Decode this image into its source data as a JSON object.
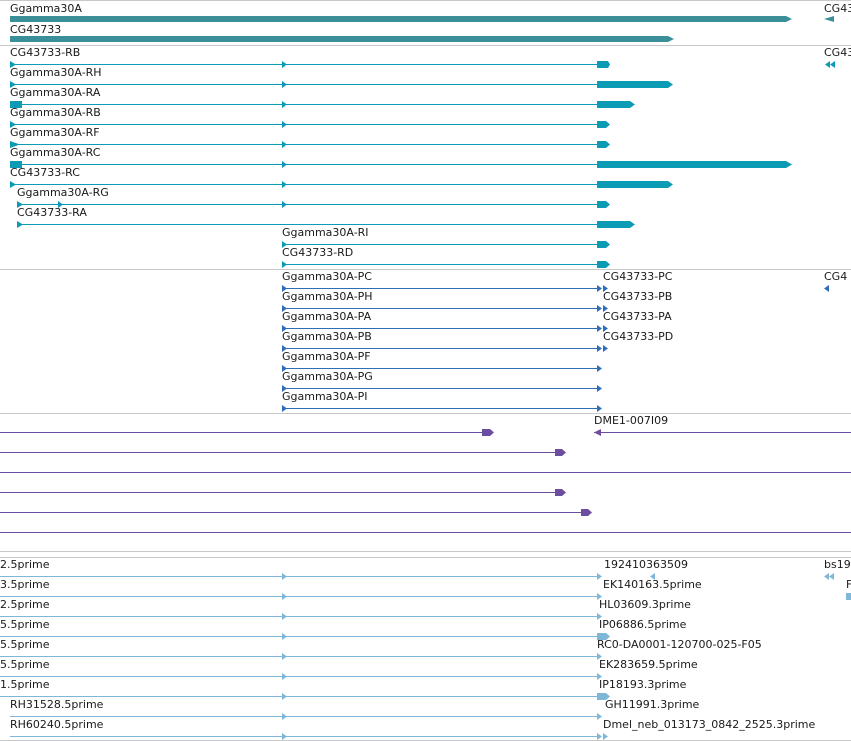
{
  "colors": {
    "gene": "#3a8f98",
    "transcript": "#0c9bb5",
    "protein": "#2f6db8",
    "est_mrna": "#6b4ea0",
    "cdna": "#7fb7d9",
    "separator": "#c8c8c8"
  },
  "genes": [
    {
      "label": "Ggamma30A"
    },
    {
      "label": "CG43733"
    },
    {
      "label": "CG43"
    }
  ],
  "transcripts": [
    {
      "label": "CG43733-RB"
    },
    {
      "label": "Ggamma30A-RH"
    },
    {
      "label": "Ggamma30A-RA"
    },
    {
      "label": "Ggamma30A-RB"
    },
    {
      "label": "Ggamma30A-RF"
    },
    {
      "label": "Ggamma30A-RC"
    },
    {
      "label": "CG43733-RC"
    },
    {
      "label": "Ggamma30A-RG"
    },
    {
      "label": "CG43733-RA"
    },
    {
      "label": "Ggamma30A-RI"
    },
    {
      "label": "CG43733-RD"
    },
    {
      "label": "CG43"
    }
  ],
  "proteins": [
    {
      "label": "Ggamma30A-PC"
    },
    {
      "label": "Ggamma30A-PH"
    },
    {
      "label": "Ggamma30A-PA"
    },
    {
      "label": "Ggamma30A-PB"
    },
    {
      "label": "Ggamma30A-PF"
    },
    {
      "label": "Ggamma30A-PG"
    },
    {
      "label": "Ggamma30A-PI"
    },
    {
      "label": "CG43733-PC"
    },
    {
      "label": "CG43733-PB"
    },
    {
      "label": "CG43733-PA"
    },
    {
      "label": "CG43733-PD"
    },
    {
      "label": "CG4"
    }
  ],
  "est_mrna": [
    {
      "label": "DME1-007I09"
    }
  ],
  "cdna": [
    {
      "label": "2.5prime"
    },
    {
      "label": "3.5prime"
    },
    {
      "label": "2.5prime"
    },
    {
      "label": "5.5prime"
    },
    {
      "label": "5.5prime"
    },
    {
      "label": "5.5prime"
    },
    {
      "label": "1.5prime"
    },
    {
      "label": "RH31528.5prime"
    },
    {
      "label": "RH60240.5prime"
    },
    {
      "label": "192410363509"
    },
    {
      "label": "EK140163.5prime"
    },
    {
      "label": "HL03609.3prime"
    },
    {
      "label": "IP06886.5prime"
    },
    {
      "label": "RC0-DA0001-120700-025-F05"
    },
    {
      "label": "EK283659.5prime"
    },
    {
      "label": "IP18193.3prime"
    },
    {
      "label": "GH11991.3prime"
    },
    {
      "label": "Dmel_neb_013173_0842_2525.3prime"
    },
    {
      "label": "bs19"
    },
    {
      "label": "F"
    }
  ]
}
